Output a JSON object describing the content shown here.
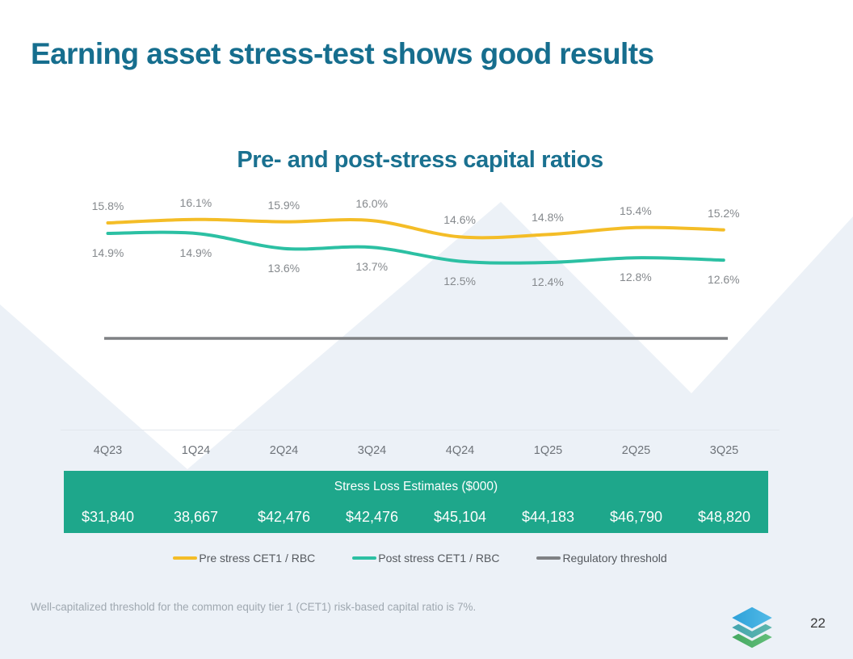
{
  "slide": {
    "title": "Earning asset stress-test shows good results",
    "footnote": "Well-capitalized threshold for the common equity tier 1 (CET1) risk-based capital ratio is 7%.",
    "page_number": "22"
  },
  "chart_data": {
    "type": "line",
    "title": "Pre- and post-stress capital ratios",
    "categories": [
      "4Q23",
      "1Q24",
      "2Q24",
      "3Q24",
      "4Q24",
      "1Q25",
      "2Q25",
      "3Q25"
    ],
    "series": [
      {
        "name": "Pre stress CET1 / RBC",
        "color": "#f4bd27",
        "values": [
          15.8,
          16.1,
          15.9,
          16.0,
          14.6,
          14.8,
          15.4,
          15.2
        ],
        "labels": [
          "15.8%",
          "16.1%",
          "15.9%",
          "16.0%",
          "14.6%",
          "14.8%",
          "15.4%",
          "15.2%"
        ]
      },
      {
        "name": "Post stress CET1 / RBC",
        "color": "#2cc0a3",
        "values": [
          14.9,
          14.9,
          13.6,
          13.7,
          12.5,
          12.4,
          12.8,
          12.6
        ],
        "labels": [
          "14.9%",
          "14.9%",
          "13.6%",
          "13.7%",
          "12.5%",
          "12.4%",
          "12.8%",
          "12.6%"
        ]
      },
      {
        "name": "Regulatory threshold",
        "color": "#7f8184",
        "type": "threshold-line"
      }
    ],
    "data_labels": "on",
    "gridlines": "off",
    "legend_position": "bottom",
    "table": {
      "header": "Stress Loss Estimates ($000)",
      "header_bg": "#1ea78b",
      "values": [
        "$31,840",
        "38,667",
        "$42,476",
        "$42,476",
        "$45,104",
        "$44,183",
        "$46,790",
        "$48,820"
      ]
    }
  },
  "theme": {
    "heading_color": "#166e8e",
    "background_shape_color": "#ecf1f7",
    "table_green": "#1ea78b"
  },
  "logo": {
    "name": "stacked-layers logo",
    "layer_colors": [
      "#2b9fd8",
      "#43a4b0",
      "#42a75f"
    ]
  }
}
